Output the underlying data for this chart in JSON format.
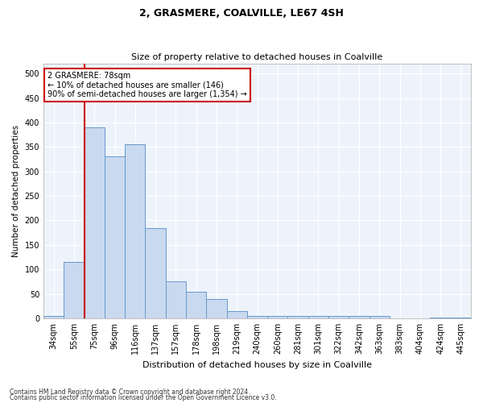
{
  "title1": "2, GRASMERE, COALVILLE, LE67 4SH",
  "title2": "Size of property relative to detached houses in Coalville",
  "xlabel": "Distribution of detached houses by size in Coalville",
  "ylabel": "Number of detached properties",
  "footnote1": "Contains HM Land Registry data © Crown copyright and database right 2024.",
  "footnote2": "Contains public sector information licensed under the Open Government Licence v3.0.",
  "bar_categories": [
    "34sqm",
    "55sqm",
    "75sqm",
    "96sqm",
    "116sqm",
    "137sqm",
    "157sqm",
    "178sqm",
    "198sqm",
    "219sqm",
    "240sqm",
    "260sqm",
    "281sqm",
    "301sqm",
    "322sqm",
    "342sqm",
    "363sqm",
    "383sqm",
    "404sqm",
    "424sqm",
    "445sqm"
  ],
  "bar_values": [
    5,
    115,
    390,
    330,
    355,
    185,
    75,
    55,
    40,
    15,
    5,
    5,
    5,
    5,
    5,
    5,
    5,
    0,
    0,
    2,
    2
  ],
  "bar_color": "#c9d9f0",
  "bar_edge_color": "#6699cc",
  "bg_color": "#eef3fb",
  "grid_color": "#ffffff",
  "red_line_index": 2,
  "red_line_color": "#cc0000",
  "annotation_text": "2 GRASMERE: 78sqm\n← 10% of detached houses are smaller (146)\n90% of semi-detached houses are larger (1,354) →",
  "annotation_box_color": "#cc0000",
  "ylim": [
    0,
    520
  ],
  "yticks": [
    0,
    50,
    100,
    150,
    200,
    250,
    300,
    350,
    400,
    450,
    500
  ],
  "title1_fontsize": 9,
  "title2_fontsize": 8,
  "ylabel_fontsize": 7.5,
  "xlabel_fontsize": 8,
  "tick_fontsize": 7,
  "annot_fontsize": 7
}
